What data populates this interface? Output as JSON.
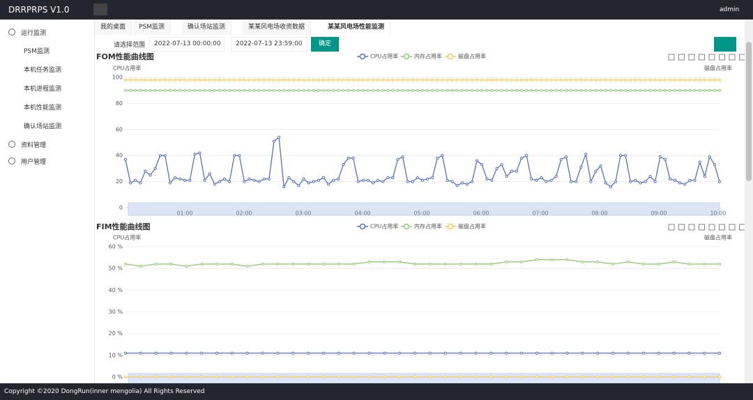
{
  "header": {
    "title": "DRRPRPS V1.0",
    "user": "admin"
  },
  "sidebar": {
    "groups": [
      {
        "label": "运行监测",
        "items": [
          "PSM监测",
          "本机任务监测",
          "本机进程监测",
          "本机性能监测",
          "确认场站监测"
        ]
      },
      {
        "label": "资料管理",
        "items": []
      },
      {
        "label": "用户管理",
        "items": []
      }
    ]
  },
  "tabs": [
    "我的桌面",
    "PSM监测",
    "确认场站监测",
    "某某风电场收资数据",
    "某某风电场性能监测"
  ],
  "filter": {
    "label": "请选择范围",
    "start": "2022-07-13 00:00:00",
    "end": "2022-07-13 23:59:00",
    "button": "确定"
  },
  "charts": [
    {
      "type": "line",
      "title": "FOM性能曲线图",
      "y_label": "CPU占用率",
      "y2_label": "磁盘占用率",
      "ylim": [
        0,
        100
      ],
      "yticks": [
        0,
        20,
        40,
        60,
        80,
        100
      ],
      "zoom_labels": [
        "01:00",
        "02:00",
        "03:00",
        "04:00",
        "05:00",
        "06:00",
        "07:00",
        "08:00",
        "09:00",
        "10:00"
      ],
      "series": [
        {
          "name": "CPU占用率",
          "color": "#5470c6",
          "values": [
            37,
            19,
            21,
            19,
            28,
            25,
            30,
            40,
            40,
            19,
            23,
            22,
            21,
            21,
            41,
            42,
            21,
            26,
            18,
            20,
            22,
            20,
            40,
            40,
            20,
            22,
            21,
            20,
            22,
            22,
            51,
            54,
            16,
            23,
            20,
            17,
            22,
            19,
            20,
            21,
            23,
            18,
            21,
            22,
            33,
            38,
            38,
            20,
            21,
            21,
            19,
            21,
            20,
            23,
            23,
            37,
            39,
            20,
            20,
            23,
            21,
            22,
            23,
            38,
            40,
            21,
            20,
            17,
            19,
            18,
            20,
            36,
            33,
            22,
            21,
            30,
            33,
            24,
            28,
            28,
            38,
            40,
            22,
            21,
            23,
            20,
            21,
            24,
            37,
            39,
            20,
            20,
            31,
            41,
            20,
            28,
            32,
            19,
            16,
            20,
            40,
            40,
            20,
            21,
            19,
            20,
            24,
            20,
            39,
            37,
            22,
            21,
            19,
            18,
            21,
            21,
            35,
            24,
            39,
            33,
            20
          ]
        },
        {
          "name": "内存占用率",
          "color": "#91cc75",
          "values": [
            90,
            90,
            90,
            90,
            90,
            90,
            90,
            90,
            90,
            90,
            90,
            90,
            90,
            90,
            90,
            90,
            90,
            90,
            90,
            90,
            90,
            90,
            90,
            90,
            90,
            90,
            90,
            90,
            90,
            90,
            90,
            90,
            90,
            90,
            90,
            90,
            90,
            90,
            90,
            90,
            90,
            90,
            90,
            90,
            90,
            90,
            90,
            90,
            90,
            90,
            90,
            90,
            90,
            90,
            90,
            90,
            90,
            90,
            90,
            90,
            90,
            90,
            90,
            90,
            90,
            90,
            90,
            90,
            90,
            90,
            90,
            90,
            90,
            90,
            90,
            90,
            90,
            90,
            90,
            90,
            90,
            90,
            90,
            90,
            90,
            90,
            90,
            90,
            90,
            90,
            90,
            90,
            90,
            90,
            90,
            90,
            90,
            90,
            90,
            90,
            90,
            90,
            90,
            90,
            90,
            90,
            90,
            90,
            90,
            90,
            90,
            90,
            90,
            90,
            90,
            90,
            90,
            90,
            90,
            90,
            90
          ]
        },
        {
          "name": "磁盘占用率",
          "color": "#fac858",
          "values": [
            98,
            98,
            98,
            98,
            98,
            98,
            98,
            98,
            98,
            98,
            98,
            98,
            98,
            98,
            98,
            98,
            98,
            98,
            98,
            98,
            98,
            98,
            98,
            98,
            98,
            98,
            98,
            98,
            98,
            98,
            98,
            98,
            98,
            98,
            98,
            98,
            98,
            98,
            98,
            98,
            98,
            98,
            98,
            98,
            98,
            98,
            98,
            98,
            98,
            98,
            98,
            98,
            98,
            98,
            98,
            98,
            98,
            98,
            98,
            98,
            98,
            98,
            98,
            98,
            98,
            98,
            98,
            98,
            98,
            98,
            98,
            98,
            98,
            98,
            98,
            98,
            98,
            98,
            98,
            98,
            98,
            98,
            98,
            98,
            98,
            98,
            98,
            98,
            98,
            98,
            98,
            98,
            98,
            98,
            98,
            98,
            98,
            98,
            98,
            98,
            98,
            98,
            98,
            98,
            98,
            98,
            98,
            98,
            98,
            98,
            98,
            98,
            98,
            98,
            98,
            98,
            98,
            98,
            98,
            98,
            98
          ]
        }
      ]
    },
    {
      "type": "line",
      "title": "FIM性能曲线图",
      "y_label": "CPU占用率",
      "y2_label": "磁盘占用率",
      "ylim": [
        0,
        60
      ],
      "yticks": [
        {
          "value": 0,
          "label": "0 %"
        },
        {
          "value": 10,
          "label": "10 %"
        },
        {
          "value": 20,
          "label": "20 %"
        },
        {
          "value": 30,
          "label": "30 %"
        },
        {
          "value": 40,
          "label": "40 %"
        },
        {
          "value": 50,
          "label": "50 %"
        },
        {
          "value": 60,
          "label": "60 %"
        }
      ],
      "series": [
        {
          "name": "CPU占用率",
          "color": "#5470c6",
          "values": [
            11,
            11,
            11,
            11,
            11,
            11,
            11,
            11,
            11,
            11,
            11,
            11,
            11,
            11,
            11,
            11,
            11,
            11,
            11,
            11,
            11,
            11,
            11,
            11,
            11,
            11,
            11,
            11,
            11,
            11,
            11,
            11,
            11,
            11,
            11,
            11,
            11,
            11,
            11,
            11
          ]
        },
        {
          "name": "内存占用率",
          "color": "#91cc75",
          "values": [
            52,
            51,
            52,
            52,
            51,
            52,
            52,
            52,
            51,
            52,
            52,
            52,
            52,
            52,
            52,
            52,
            53,
            53,
            53,
            52,
            52,
            52,
            52,
            52,
            52,
            53,
            53,
            54,
            54,
            54,
            53,
            53,
            52,
            53,
            52,
            52,
            53,
            52,
            52,
            52
          ]
        },
        {
          "name": "磁盘占用率",
          "color": "#fac858",
          "values": [
            0,
            0,
            0,
            0,
            0,
            0,
            0,
            0,
            0,
            0,
            0,
            0,
            0,
            0,
            0,
            0,
            0,
            0,
            0,
            0,
            0,
            0,
            0,
            0,
            0,
            0,
            0,
            0,
            0,
            0,
            0,
            0,
            0,
            0,
            0,
            0,
            0,
            0,
            0,
            0
          ]
        }
      ]
    }
  ],
  "footer": "Copyright ©2020 DongRun(inner mengolia) All Rights Reserved"
}
